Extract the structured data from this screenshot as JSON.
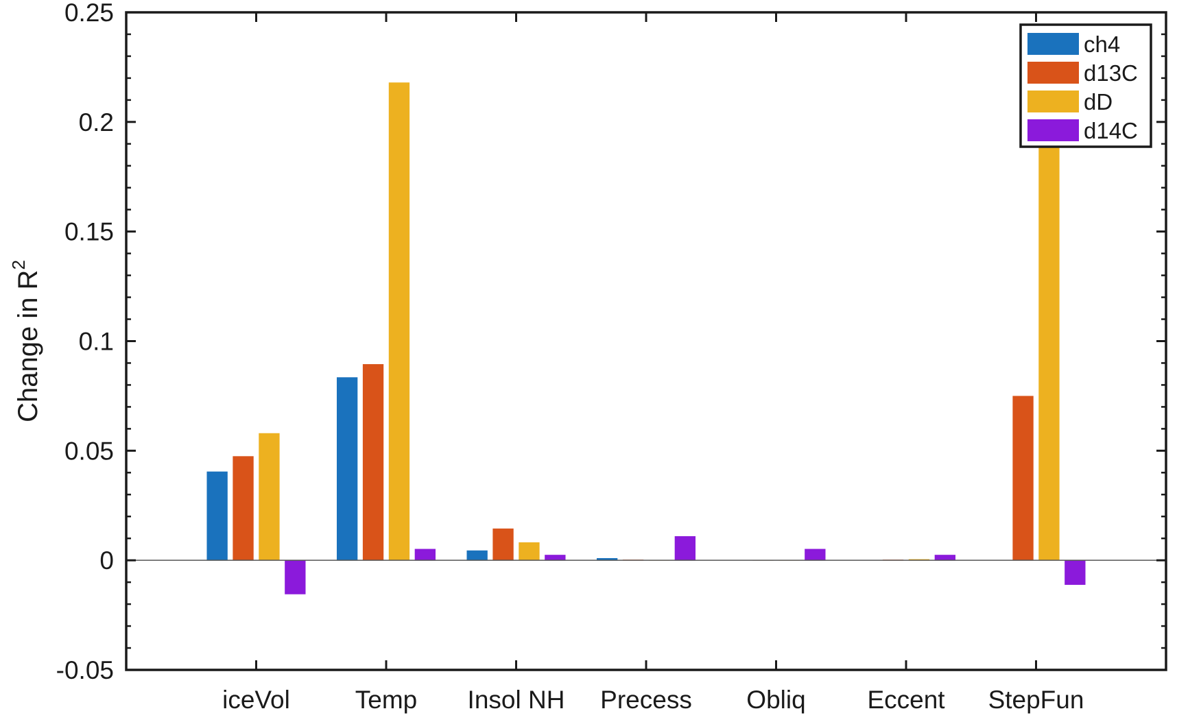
{
  "chart_data": {
    "type": "bar",
    "ylabel": "Change  in  R",
    "ylabel_superscript": "2",
    "xlabel": "",
    "title": "",
    "ylim": [
      -0.05,
      0.25
    ],
    "yticks": [
      -0.05,
      0,
      0.05,
      0.1,
      0.15,
      0.2,
      0.25
    ],
    "ytick_labels": [
      "-0.05",
      "0",
      "0.05",
      "0.1",
      "0.15",
      "0.2",
      "0.25"
    ],
    "categories": [
      "iceVol",
      "Temp",
      "Insol NH",
      "Precess",
      "Obliq",
      "Eccent",
      "StepFun"
    ],
    "series": [
      {
        "name": "ch4",
        "color": "#1a72bd",
        "values": [
          0.0405,
          0.0835,
          0.0045,
          0.001,
          0.0002,
          0.0002,
          0.0002
        ]
      },
      {
        "name": "d13C",
        "color": "#d95319",
        "values": [
          0.0475,
          0.0895,
          0.0145,
          0.0003,
          0.0001,
          0.0003,
          0.075
        ]
      },
      {
        "name": "dD",
        "color": "#edb120",
        "values": [
          0.058,
          0.218,
          0.0082,
          0.0001,
          0.0001,
          0.0005,
          0.1895
        ]
      },
      {
        "name": "d14C",
        "color": "#8b1adb",
        "values": [
          -0.0155,
          0.0052,
          0.0025,
          0.011,
          0.0052,
          0.0025,
          -0.0112
        ]
      }
    ],
    "legend_position": "top-right",
    "grid": false,
    "zero_line": true
  }
}
